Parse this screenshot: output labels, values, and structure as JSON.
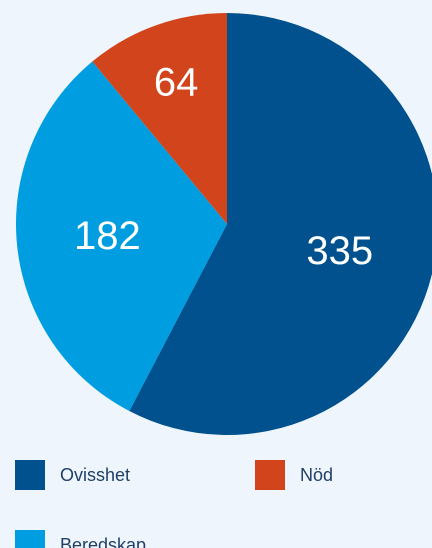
{
  "chart_data": {
    "type": "pie",
    "categories": [
      "Ovisshet",
      "Beredskap",
      "Nöd"
    ],
    "values": [
      335,
      182,
      64
    ],
    "colors": [
      "#00518e",
      "#009ee0",
      "#d2451c"
    ]
  }
}
